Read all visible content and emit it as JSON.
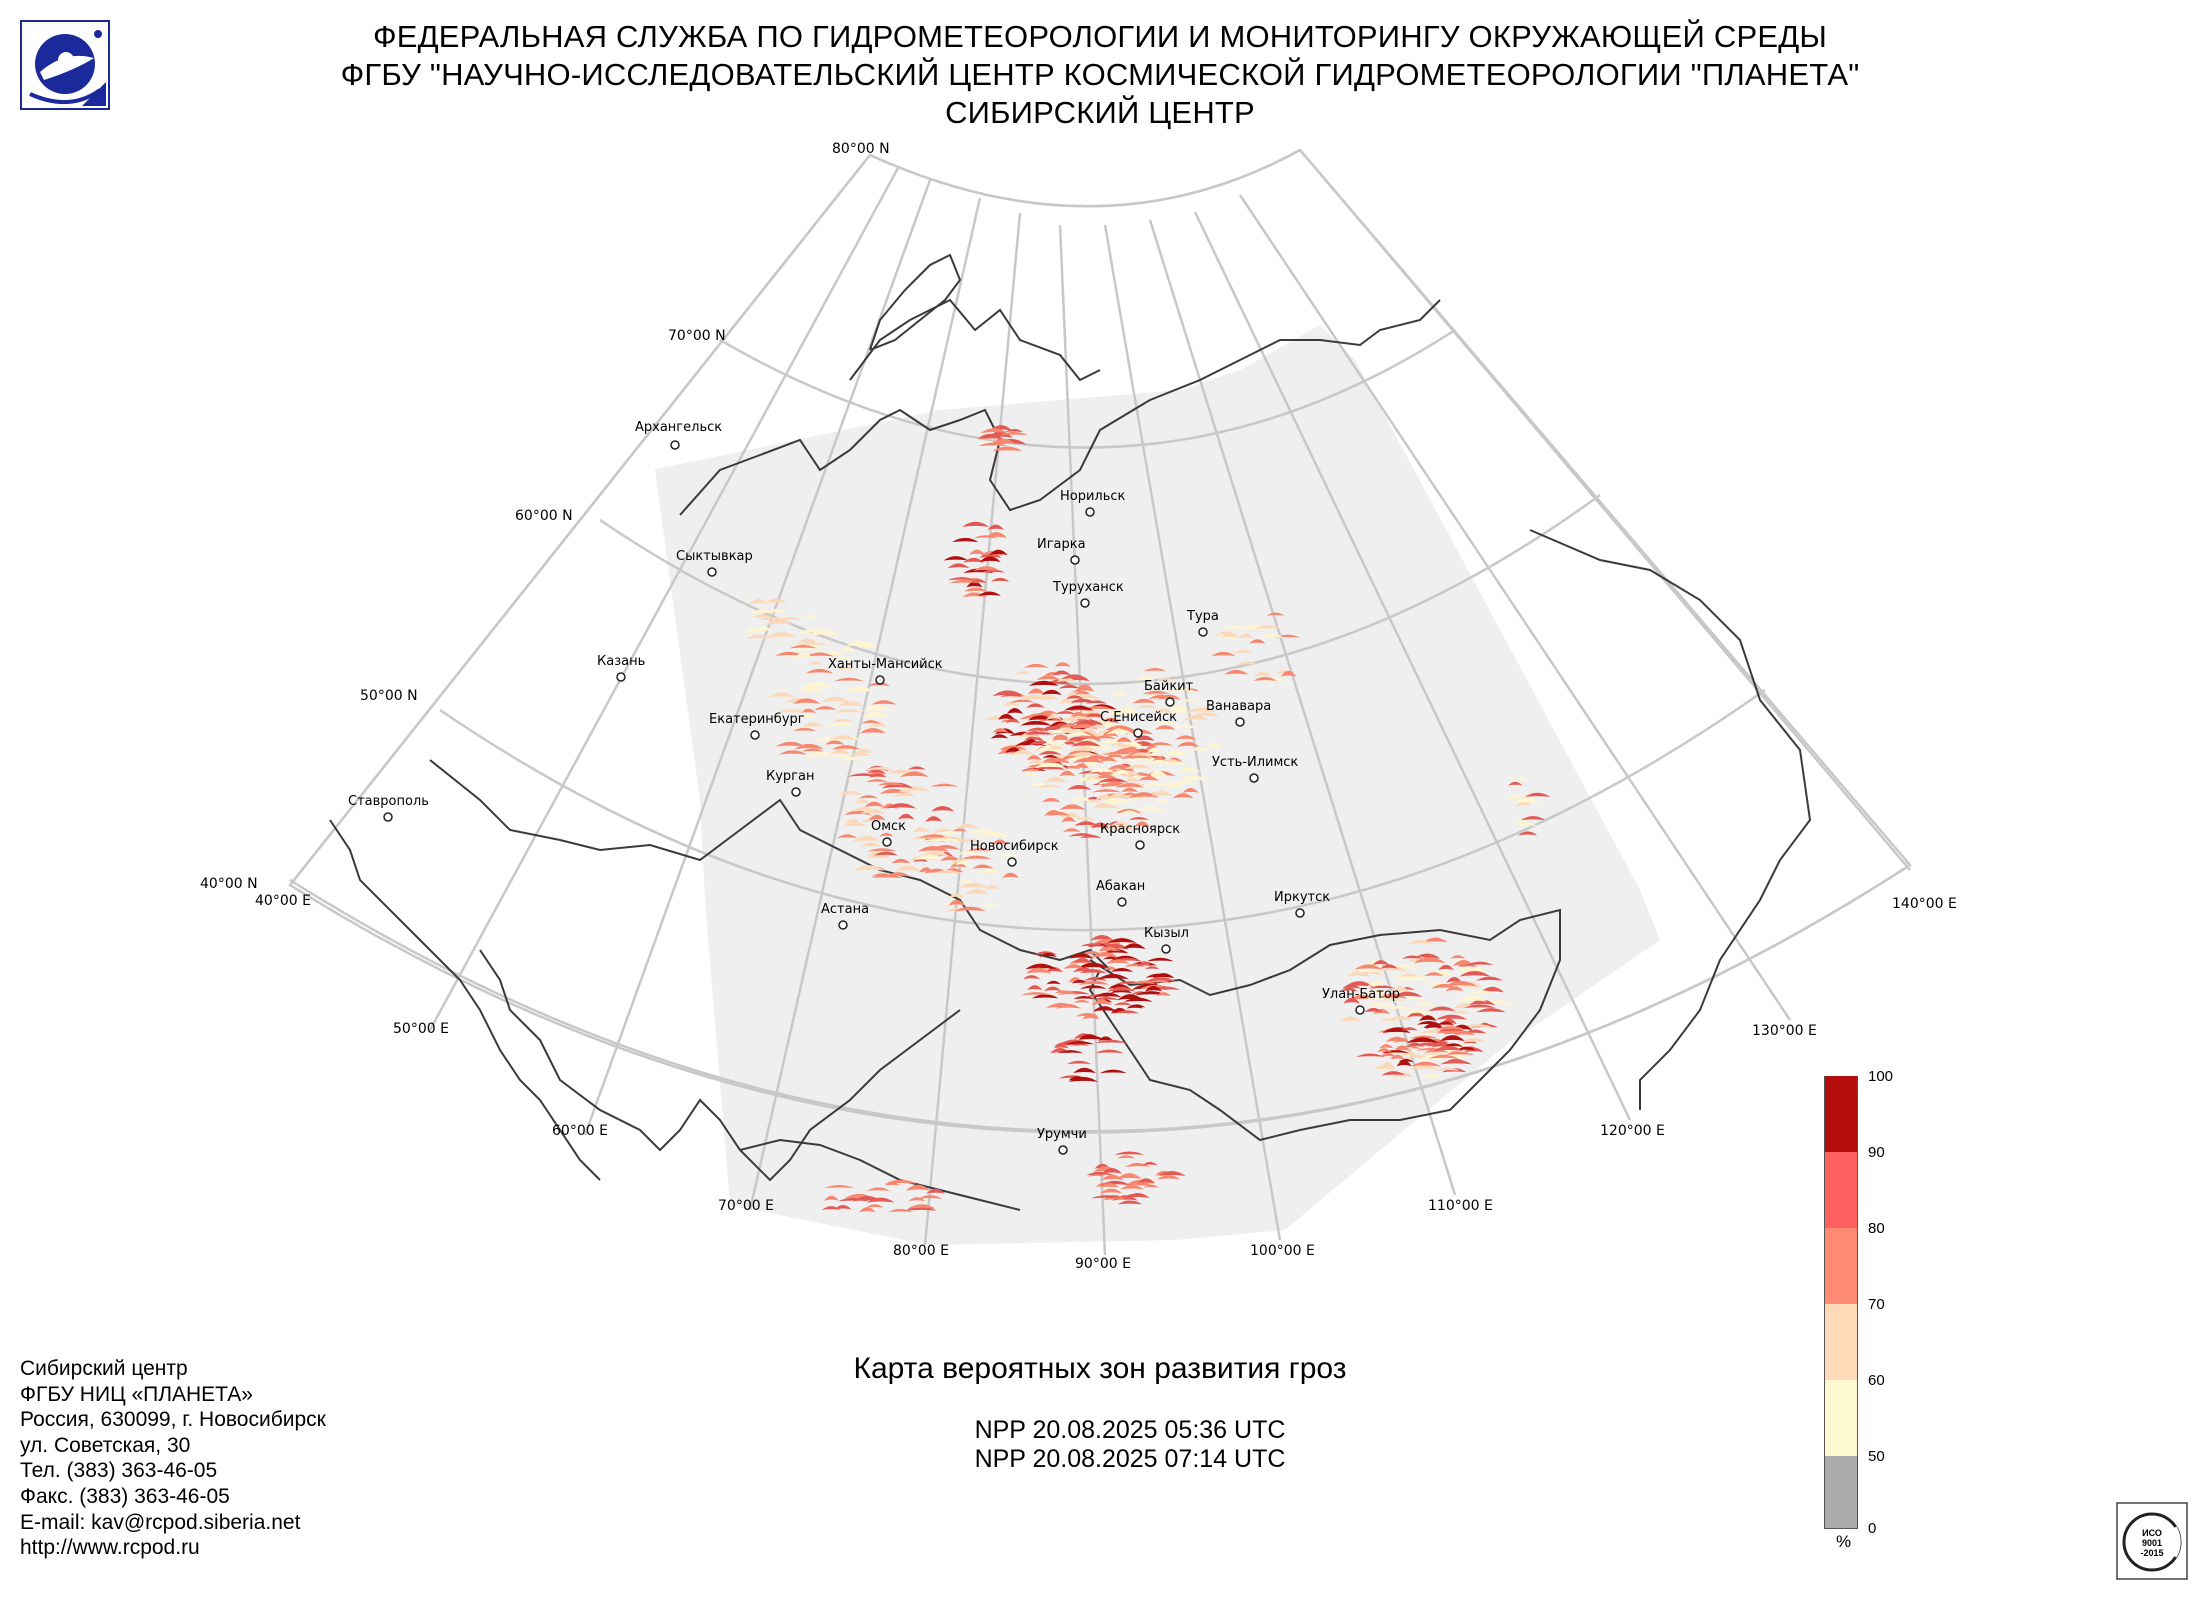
{
  "header": {
    "line1": "ФЕДЕРАЛЬНАЯ СЛУЖБА ПО ГИДРОМЕТЕОРОЛОГИИ И МОНИТОРИНГУ ОКРУЖАЮЩЕЙ СРЕДЫ",
    "line2": "ФГБУ \"НАУЧНО-ИССЛЕДОВАТЕЛЬСКИЙ ЦЕНТР КОСМИЧЕСКОЙ ГИДРОМЕТЕОРОЛОГИИ \"ПЛАНЕТА\"",
    "line3": "СИБИРСКИЙ ЦЕНТР"
  },
  "map": {
    "lat_labels": [
      "80°00 N",
      "70°00 N",
      "60°00 N",
      "50°00 N",
      "40°00 N"
    ],
    "lon_labels": [
      "40°00 E",
      "50°00 E",
      "60°00 E",
      "70°00 E",
      "80°00 E",
      "90°00 E",
      "100°00 E",
      "110°00 E",
      "120°00 E",
      "130°00 E",
      "140°00 E"
    ],
    "cities": [
      "Архангельск",
      "Норильск",
      "Игарка",
      "Сыктывкар",
      "Туруханск",
      "Тура",
      "Казань",
      "Ханты-Мансийск",
      "Байкит",
      "Ванавара",
      "Екатеринбург",
      "С.Енисейск",
      "Усть-Илимск",
      "Курган",
      "Ставрополь",
      "Омск",
      "Красноярск",
      "Новосибирск",
      "Абакан",
      "Иркутск",
      "Астана",
      "Кызыл",
      "Улан-Батор",
      "Урумчи"
    ],
    "colors": {
      "coverage": "#efefef",
      "graticule": "#c8c8c8",
      "borders": "#3a3a3a",
      "p50_60": "#fff6cf",
      "p60_70": "#fbd9b8",
      "p70_80": "#f7876e",
      "p80_90": "#e35a55",
      "p90_100": "#b01010"
    }
  },
  "legend": {
    "ticks": [
      "100",
      "90",
      "80",
      "70",
      "60",
      "50",
      "0"
    ],
    "unit": "%",
    "colors": [
      "#b50d0d",
      "#ff6060",
      "#ff8a74",
      "#ffdab9",
      "#fff9d0",
      "#ababab"
    ]
  },
  "title": "Карта вероятных зон развития гроз",
  "passes": [
    "NPP 20.08.2025  05:36 UTC",
    "NPP 20.08.2025  07:14 UTC"
  ],
  "contacts": [
    "Сибирский центр",
    "ФГБУ НИЦ «ПЛАНЕТА»",
    "Россия, 630099, г. Новосибирск",
    "ул. Советская, 30",
    "Тел. (383) 363-46-05",
    "Факс. (383) 363-46-05",
    "E-mail: kav@rcpod.siberia.net",
    "http://www.rcpod.ru"
  ],
  "iso_badge": [
    "ИСО",
    "9001",
    "-2015"
  ]
}
